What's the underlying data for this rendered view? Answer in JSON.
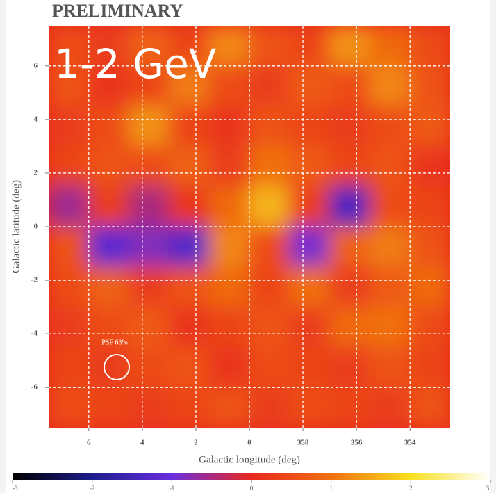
{
  "chart_data": {
    "type": "heatmap",
    "header": "PRELIMINARY",
    "title": "1-2 GeV",
    "x_label": "Galactic longitude (deg)",
    "y_label": "Galactic latitude (deg)",
    "psf_label": "PSF 68%",
    "xlim": [
      7.5,
      -7.5
    ],
    "ylim": [
      -7.5,
      7.5
    ],
    "xticks": [
      6,
      4,
      2,
      0,
      {
        "value": -2,
        "label": "358"
      },
      {
        "value": -4,
        "label": "356"
      },
      {
        "value": -6,
        "label": "354"
      }
    ],
    "yticks": [
      -6,
      -4,
      -2,
      0,
      2,
      4,
      6
    ],
    "grid": true,
    "values": [
      [
        0.5,
        0.3,
        0.8,
        0.4,
        1.2,
        0.6,
        0.4,
        1.3,
        0.9,
        0.5
      ],
      [
        0.6,
        0.2,
        0.4,
        1.1,
        0.5,
        0.3,
        0.7,
        0.5,
        1.2,
        0.6
      ],
      [
        0.3,
        0.5,
        1.3,
        0.4,
        0.2,
        0.6,
        0.4,
        0.3,
        0.5,
        0.7
      ],
      [
        0.4,
        0.6,
        0.5,
        0.8,
        0.3,
        1.0,
        0.7,
        0.4,
        0.6,
        0.2
      ],
      [
        -0.6,
        0.3,
        -0.5,
        0.2,
        0.9,
        1.6,
        0.3,
        -1.4,
        0.5,
        0.4
      ],
      [
        0.6,
        -1.2,
        -0.8,
        -1.3,
        1.2,
        0.5,
        -0.9,
        0.8,
        1.1,
        0.6
      ],
      [
        0.5,
        0.8,
        0.3,
        0.6,
        0.9,
        0.4,
        1.0,
        0.3,
        0.7,
        0.9
      ],
      [
        0.3,
        0.5,
        0.7,
        0.2,
        0.4,
        0.6,
        0.3,
        0.9,
        1.0,
        0.5
      ],
      [
        0.4,
        0.3,
        0.5,
        0.6,
        0.2,
        0.5,
        0.4,
        0.3,
        0.6,
        0.4
      ],
      [
        0.5,
        0.4,
        0.3,
        0.4,
        0.6,
        0.3,
        0.5,
        0.4,
        0.3,
        0.6
      ]
    ],
    "clim": [
      -3,
      3
    ],
    "cticks": [
      -3,
      -2,
      -1,
      0,
      1,
      2,
      3
    ],
    "colors": [
      "#000000",
      "#1c1c8c",
      "#6a2ee0",
      "#e8281e",
      "#f07010",
      "#f8e020",
      "#ffffff"
    ]
  }
}
